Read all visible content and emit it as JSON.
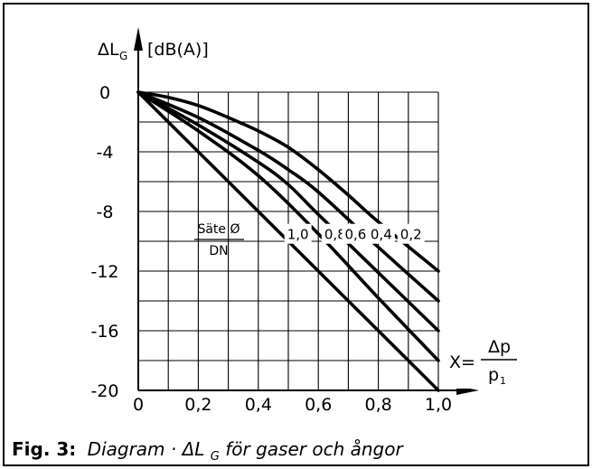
{
  "chart_data": {
    "type": "line",
    "ylabel_symbol": "ΔL",
    "ylabel_sub": "G",
    "ylabel_unit": "[dB(A)]",
    "xlabel_prefix": "X=",
    "xlabel_num": "Δp",
    "xlabel_den_main": "p",
    "xlabel_den_sub": "1",
    "xlim": [
      0,
      1.0
    ],
    "ylim": [
      -20,
      0
    ],
    "grid": true,
    "x_ticks": [
      "0",
      "0,2",
      "0,4",
      "0,6",
      "0,8",
      "1,0"
    ],
    "x_tick_values": [
      0,
      0.2,
      0.4,
      0.6,
      0.8,
      1.0
    ],
    "y_ticks": [
      "0",
      "-4",
      "-8",
      "-12",
      "-16",
      "-20"
    ],
    "y_tick_values": [
      0,
      -4,
      -8,
      -12,
      -16,
      -20
    ],
    "legend_title_num": "Säte Ø",
    "legend_title_den": "DN",
    "series": [
      {
        "name": "1,0",
        "x": [
          0,
          1.0
        ],
        "y": [
          0,
          -20
        ]
      },
      {
        "name": "0,8",
        "x": [
          0,
          0.2,
          0.4,
          0.6,
          0.8,
          1.0
        ],
        "y": [
          0,
          -2.6,
          -5.6,
          -9.5,
          -13.8,
          -18
        ]
      },
      {
        "name": "0,6",
        "x": [
          0,
          0.2,
          0.4,
          0.5,
          0.6,
          0.8,
          1.0
        ],
        "y": [
          0,
          -2.2,
          -4.7,
          -6.2,
          -8.2,
          -12.1,
          -16
        ]
      },
      {
        "name": "0,4",
        "x": [
          0,
          0.2,
          0.4,
          0.5,
          0.6,
          0.8,
          1.0
        ],
        "y": [
          0,
          -1.7,
          -3.9,
          -5.2,
          -6.7,
          -10.4,
          -14
        ]
      },
      {
        "name": "0,2",
        "x": [
          0,
          0.1,
          0.2,
          0.3,
          0.4,
          0.5,
          0.6,
          0.7,
          0.8,
          1.0
        ],
        "y": [
          0,
          -0.35,
          -0.9,
          -1.7,
          -2.6,
          -3.7,
          -5.2,
          -6.9,
          -8.7,
          -12
        ]
      }
    ]
  },
  "caption": {
    "fig": "Fig. 3:",
    "text_before": "Diagram · ΔL",
    "text_sub": "G",
    "text_after": " för gaser och ångor"
  }
}
